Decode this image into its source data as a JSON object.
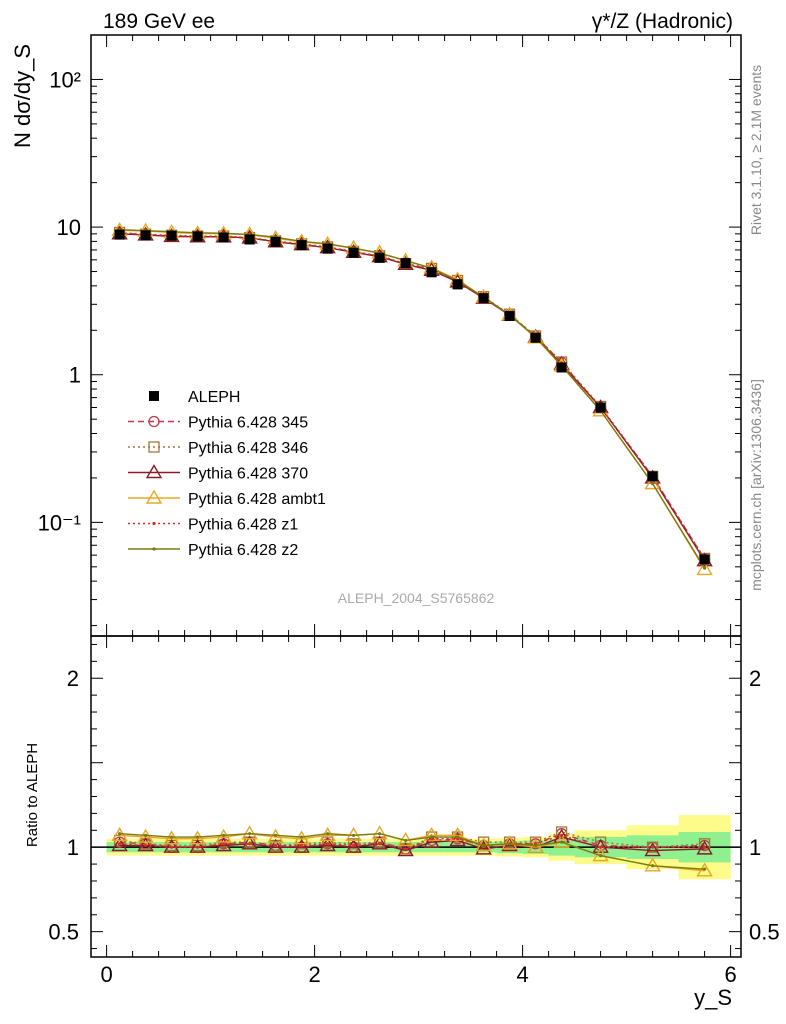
{
  "header": {
    "left_label": "189 GeV ee",
    "right_label": "γ*/Z (Hadronic)"
  },
  "side_text": {
    "rivet": "Rivet 3.1.10, ≥ 2.1M events",
    "mcplots": "mcplots.cern.ch [arXiv:1306.3436]"
  },
  "watermark": "ALEPH_2004_S5765862",
  "chart_data": [
    {
      "type": "line",
      "yscale": "log",
      "ylabel": "N dσ/dy_S",
      "xlim": [
        -0.15,
        6.1
      ],
      "ylim": [
        0.017,
        200
      ],
      "y_ticks": [
        {
          "value": 100,
          "label": "10²"
        },
        {
          "value": 10,
          "label": "10"
        },
        {
          "value": 1,
          "label": "1"
        },
        {
          "value": 0.1,
          "label": "10⁻¹"
        }
      ],
      "x": [
        0.125,
        0.375,
        0.625,
        0.875,
        1.125,
        1.375,
        1.625,
        1.875,
        2.125,
        2.375,
        2.625,
        2.875,
        3.125,
        3.375,
        3.625,
        3.875,
        4.125,
        4.375,
        4.75,
        5.25,
        5.75
      ],
      "x_bin_edges": [
        0.0,
        0.25,
        0.5,
        0.75,
        1.0,
        1.25,
        1.5,
        1.75,
        2.0,
        2.25,
        2.5,
        2.75,
        3.0,
        3.25,
        3.5,
        3.75,
        4.0,
        4.25,
        4.5,
        5.0,
        5.5,
        6.0
      ],
      "legend_position": "center-left",
      "series": [
        {
          "name": "ALEPH",
          "color": "#000000",
          "style": "data",
          "values": [
            8.9,
            8.8,
            8.75,
            8.65,
            8.5,
            8.25,
            7.95,
            7.55,
            7.15,
            6.7,
            6.2,
            5.7,
            4.95,
            4.1,
            3.3,
            2.5,
            1.78,
            1.12,
            0.6,
            0.205,
            0.056
          ]
        },
        {
          "name": "Pythia 6.428 345",
          "color": "#c0394b",
          "style": "dashed",
          "marker": "circle",
          "values": [
            9.1,
            8.9,
            8.7,
            8.6,
            8.6,
            8.4,
            8.0,
            7.6,
            7.3,
            6.8,
            6.35,
            5.6,
            5.2,
            4.3,
            3.35,
            2.55,
            1.82,
            1.21,
            0.6,
            0.205,
            0.0565
          ]
        },
        {
          "name": "Pythia 6.428 346",
          "color": "#a07838",
          "style": "dotted",
          "marker": "square",
          "values": [
            9.2,
            8.95,
            8.8,
            8.7,
            8.7,
            8.5,
            8.05,
            7.7,
            7.35,
            6.85,
            6.4,
            5.65,
            5.25,
            4.35,
            3.38,
            2.57,
            1.83,
            1.22,
            0.61,
            0.205,
            0.057
          ]
        },
        {
          "name": "Pythia 6.428 370",
          "color": "#8b1a2b",
          "style": "solid",
          "marker": "triangle",
          "values": [
            9.0,
            8.85,
            8.65,
            8.6,
            8.6,
            8.45,
            7.95,
            7.6,
            7.25,
            6.75,
            6.3,
            5.6,
            5.1,
            4.25,
            3.3,
            2.53,
            1.8,
            1.18,
            0.6,
            0.2,
            0.055
          ]
        },
        {
          "name": "Pythia 6.428 ambt1",
          "color": "#e8a820",
          "style": "solid",
          "marker": "triangle",
          "values": [
            9.5,
            9.4,
            9.2,
            9.05,
            9.0,
            8.9,
            8.4,
            7.95,
            7.65,
            7.2,
            6.7,
            5.9,
            5.3,
            4.4,
            3.35,
            2.55,
            1.78,
            1.15,
            0.57,
            0.183,
            0.048
          ]
        },
        {
          "name": "Pythia 6.428 z1",
          "color": "#dd2a2a",
          "style": "dotted",
          "marker": "dot",
          "values": [
            9.1,
            8.9,
            8.75,
            8.65,
            8.65,
            8.45,
            8.0,
            7.65,
            7.3,
            6.8,
            6.35,
            5.65,
            5.2,
            4.3,
            3.33,
            2.55,
            1.82,
            1.2,
            0.6,
            0.205,
            0.056
          ]
        },
        {
          "name": "Pythia 6.428 z2",
          "color": "#7a7a10",
          "style": "solid",
          "marker": "dot",
          "values": [
            9.6,
            9.45,
            9.3,
            9.15,
            9.1,
            8.9,
            8.55,
            8.0,
            7.7,
            7.2,
            6.65,
            5.95,
            5.25,
            4.35,
            3.35,
            2.55,
            1.8,
            1.15,
            0.57,
            0.183,
            0.049
          ]
        }
      ]
    },
    {
      "type": "line",
      "ylabel": "Ratio to ALEPH",
      "xlabel": "y_S",
      "xlim": [
        -0.15,
        6.1
      ],
      "ylim": [
        0.35,
        2.25
      ],
      "x_ticks": [
        0,
        2,
        4,
        6
      ],
      "y_ticks": [
        {
          "value": 0.5,
          "label": "0.5"
        },
        {
          "value": 1,
          "label": "1"
        },
        {
          "value": 2,
          "label": "2"
        }
      ],
      "x": [
        0.125,
        0.375,
        0.625,
        0.875,
        1.125,
        1.375,
        1.625,
        1.875,
        2.125,
        2.375,
        2.625,
        2.875,
        3.125,
        3.375,
        3.625,
        3.875,
        4.125,
        4.375,
        4.75,
        5.25,
        5.75
      ],
      "uncertainty_inner": [
        0.03,
        0.03,
        0.03,
        0.03,
        0.03,
        0.03,
        0.03,
        0.03,
        0.03,
        0.03,
        0.03,
        0.03,
        0.03,
        0.03,
        0.03,
        0.035,
        0.04,
        0.05,
        0.06,
        0.07,
        0.09
      ],
      "uncertainty_outer": [
        0.05,
        0.05,
        0.05,
        0.05,
        0.05,
        0.05,
        0.05,
        0.05,
        0.05,
        0.05,
        0.05,
        0.05,
        0.05,
        0.05,
        0.05,
        0.055,
        0.06,
        0.08,
        0.1,
        0.13,
        0.19
      ],
      "series": [
        {
          "name": "Pythia 6.428 345",
          "color": "#c0394b",
          "style": "dashed",
          "marker": "circle",
          "values": [
            1.03,
            1.02,
            1.0,
            1.0,
            1.02,
            1.03,
            1.01,
            1.0,
            1.02,
            1.0,
            1.03,
            0.99,
            1.04,
            1.05,
            1.01,
            1.02,
            1.02,
            1.08,
            1.01,
            1.0,
            1.01
          ]
        },
        {
          "name": "Pythia 6.428 346",
          "color": "#a07838",
          "style": "dotted",
          "marker": "square",
          "values": [
            1.04,
            1.02,
            1.01,
            1.01,
            1.03,
            1.03,
            1.01,
            1.02,
            1.03,
            1.02,
            1.03,
            0.99,
            1.06,
            1.06,
            1.03,
            1.03,
            1.03,
            1.09,
            1.03,
            1.0,
            1.02
          ]
        },
        {
          "name": "Pythia 6.428 370",
          "color": "#8b1a2b",
          "style": "solid",
          "marker": "triangle",
          "values": [
            1.01,
            1.01,
            1.0,
            1.0,
            1.01,
            1.02,
            1.0,
            1.0,
            1.01,
            1.0,
            1.02,
            0.98,
            1.03,
            1.04,
            0.99,
            1.01,
            1.0,
            1.06,
            1.0,
            0.98,
            0.99
          ]
        },
        {
          "name": "Pythia 6.428 ambt1",
          "color": "#e8a820",
          "style": "solid",
          "marker": "triangle",
          "values": [
            1.07,
            1.06,
            1.05,
            1.05,
            1.06,
            1.08,
            1.06,
            1.05,
            1.07,
            1.07,
            1.08,
            1.04,
            1.07,
            1.07,
            1.01,
            1.02,
            1.0,
            1.03,
            0.95,
            0.89,
            0.86
          ]
        },
        {
          "name": "Pythia 6.428 z1",
          "color": "#dd2a2a",
          "style": "dotted",
          "marker": "dot",
          "values": [
            1.02,
            1.01,
            1.0,
            1.0,
            1.02,
            1.02,
            1.01,
            1.01,
            1.02,
            1.01,
            1.02,
            0.99,
            1.05,
            1.05,
            1.01,
            1.02,
            1.02,
            1.07,
            1.0,
            1.0,
            1.0
          ]
        },
        {
          "name": "Pythia 6.428 z2",
          "color": "#7a7a10",
          "style": "solid",
          "marker": "dot",
          "values": [
            1.08,
            1.07,
            1.06,
            1.06,
            1.07,
            1.08,
            1.07,
            1.06,
            1.08,
            1.07,
            1.08,
            1.04,
            1.06,
            1.06,
            1.01,
            1.02,
            1.01,
            1.03,
            0.95,
            0.89,
            0.87
          ]
        }
      ]
    }
  ]
}
